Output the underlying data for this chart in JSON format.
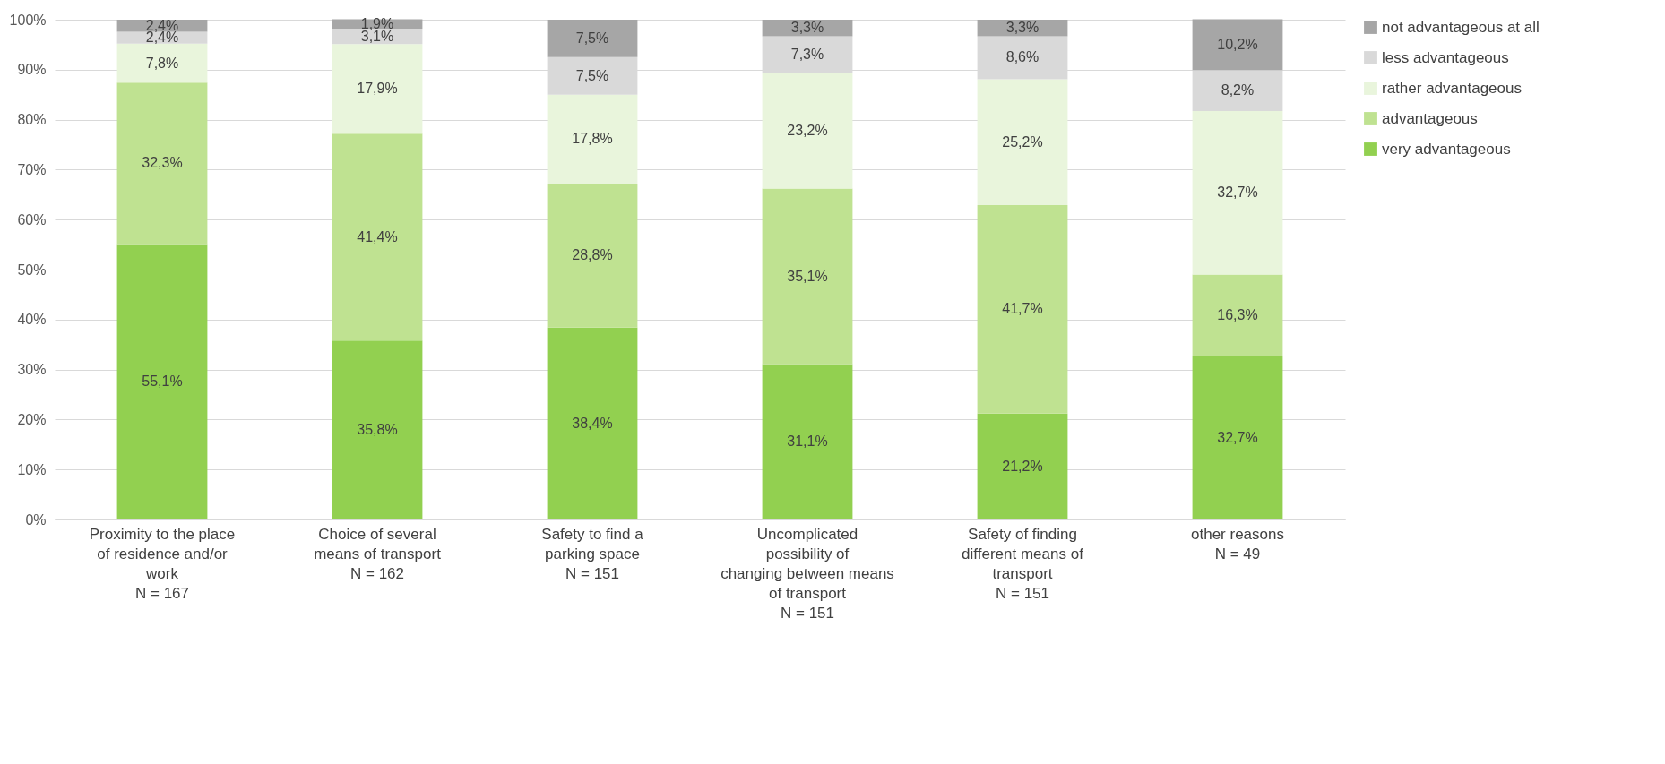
{
  "chart_data": {
    "type": "bar",
    "stacked": true,
    "categories": [
      "Proximity to the place of residence and/or work\nN = 167",
      "Choice of several means of transport\nN = 162",
      "Safety to find a parking space\nN = 151",
      "Uncomplicated possibility of changing between means of transport\nN = 151",
      "Safety of finding different means of transport\nN = 151",
      "other reasons\nN = 49"
    ],
    "series": [
      {
        "name": "very advantageous",
        "color": "#92d050",
        "values": [
          55.1,
          35.8,
          38.4,
          31.1,
          21.2,
          32.7
        ],
        "value_labels": [
          "55,1%",
          "35,8%",
          "38,4%",
          "31,1%",
          "21,2%",
          "32,7%"
        ]
      },
      {
        "name": "advantageous",
        "color": "#bfe291",
        "values": [
          32.3,
          41.4,
          28.8,
          35.1,
          41.7,
          16.3
        ],
        "value_labels": [
          "32,3%",
          "41,4%",
          "28,8%",
          "35,1%",
          "41,7%",
          "16,3%"
        ]
      },
      {
        "name": "rather advantageous",
        "color": "#e9f5dc",
        "values": [
          7.8,
          17.9,
          17.8,
          23.2,
          25.2,
          32.7
        ],
        "value_labels": [
          "7,8%",
          "17,9%",
          "17,8%",
          "23,2%",
          "25,2%",
          "32,7%"
        ]
      },
      {
        "name": "less advantageous",
        "color": "#d9d9d9",
        "values": [
          2.4,
          3.1,
          7.5,
          7.3,
          8.6,
          8.2
        ],
        "value_labels": [
          "2,4%",
          "3,1%",
          "7,5%",
          "7,3%",
          "8,6%",
          "8,2%"
        ]
      },
      {
        "name": "not advantageous at all",
        "color": "#a6a6a6",
        "values": [
          2.4,
          1.9,
          7.5,
          3.3,
          3.3,
          10.2
        ],
        "value_labels": [
          "2,4%",
          "1,9%",
          "7,5%",
          "3,3%",
          "3,3%",
          "10,2%"
        ]
      }
    ],
    "ylim": [
      0,
      100
    ],
    "yticks": [
      {
        "value": 0,
        "label": "0%"
      },
      {
        "value": 10,
        "label": "10%"
      },
      {
        "value": 20,
        "label": "20%"
      },
      {
        "value": 30,
        "label": "30%"
      },
      {
        "value": 40,
        "label": "40%"
      },
      {
        "value": 50,
        "label": "50%"
      },
      {
        "value": 60,
        "label": "60%"
      },
      {
        "value": 70,
        "label": "70%"
      },
      {
        "value": 80,
        "label": "80%"
      },
      {
        "value": 90,
        "label": "90%"
      },
      {
        "value": 100,
        "label": "100%"
      }
    ],
    "grid": "y",
    "legend": "right"
  }
}
